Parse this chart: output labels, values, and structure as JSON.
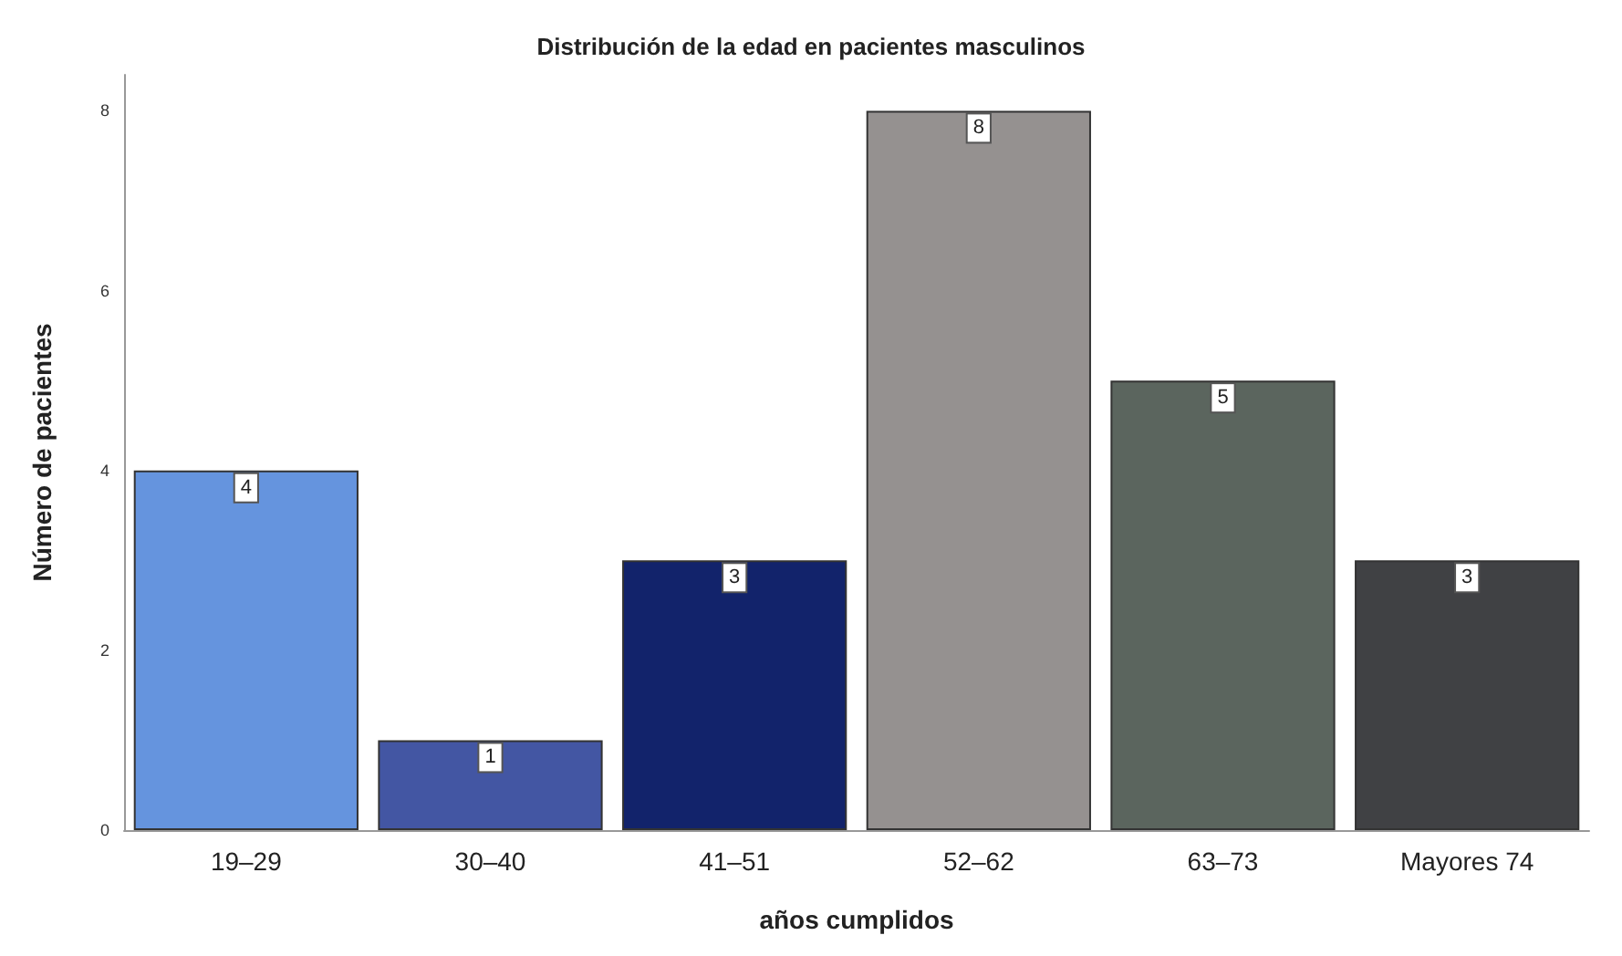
{
  "chart_data": {
    "type": "bar",
    "title": "Distribución de la edad en pacientes masculinos",
    "xlabel": "años cumplidos",
    "ylabel": "Número de pacientes",
    "categories": [
      "19–29",
      "30–40",
      "41–51",
      "52–62",
      "63–73",
      "Mayores 74"
    ],
    "values": [
      4,
      1,
      3,
      8,
      5,
      3
    ],
    "colors": [
      "#6594de",
      "#4356a3",
      "#12236b",
      "#959190",
      "#5b655e",
      "#404144"
    ],
    "ylim": [
      0,
      8.4
    ],
    "yticks": [
      0,
      2,
      4,
      6,
      8
    ],
    "grid": false,
    "data_labels": true
  }
}
